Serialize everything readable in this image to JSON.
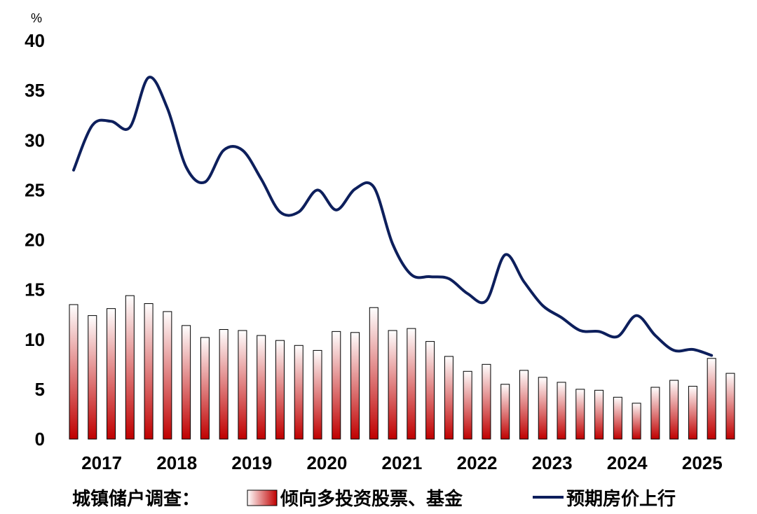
{
  "chart_data": {
    "type": "bar+line",
    "unit": "%",
    "ylim": [
      0,
      40
    ],
    "yticks": [
      0,
      5,
      10,
      15,
      20,
      25,
      30,
      35,
      40
    ],
    "year_labels": [
      "2017",
      "2018",
      "2019",
      "2020",
      "2021",
      "2022",
      "2023",
      "2024",
      "2025"
    ],
    "quarters": [
      "2017Q1",
      "2017Q2",
      "2017Q3",
      "2017Q4",
      "2018Q1",
      "2018Q2",
      "2018Q3",
      "2018Q4",
      "2019Q1",
      "2019Q2",
      "2019Q3",
      "2019Q4",
      "2020Q1",
      "2020Q2",
      "2020Q3",
      "2020Q4",
      "2021Q1",
      "2021Q2",
      "2021Q3",
      "2021Q4",
      "2022Q1",
      "2022Q2",
      "2022Q3",
      "2022Q4",
      "2023Q1",
      "2023Q2",
      "2023Q3",
      "2023Q4",
      "2024Q1",
      "2024Q2",
      "2024Q3",
      "2024Q4",
      "2025Q1",
      "2025Q2",
      "2025Q3",
      "2025Q4"
    ],
    "legend_prefix": "城镇储户调查：",
    "series": [
      {
        "name": "倾向多投资股票、基金",
        "type": "bar",
        "color_top": "#ffffff",
        "color_bottom": "#c00000",
        "values": [
          13.5,
          12.4,
          13.1,
          14.4,
          13.6,
          12.8,
          11.4,
          10.2,
          11.0,
          10.9,
          10.4,
          9.9,
          9.4,
          8.9,
          10.8,
          10.7,
          13.2,
          10.9,
          11.1,
          9.8,
          8.3,
          6.8,
          7.5,
          5.5,
          6.9,
          6.2,
          5.7,
          5.0,
          4.9,
          4.2,
          3.6,
          5.2,
          5.9,
          5.3,
          8.1,
          6.6
        ]
      },
      {
        "name": "预期房价上行",
        "type": "line",
        "color": "#0d1f5c",
        "values": [
          27.0,
          31.5,
          31.9,
          31.3,
          36.3,
          33.2,
          27.3,
          25.8,
          29.0,
          29.0,
          26.1,
          22.8,
          22.8,
          25.0,
          23.0,
          25.1,
          25.3,
          19.6,
          16.5,
          16.3,
          16.1,
          14.6,
          13.9,
          18.5,
          15.8,
          13.4,
          12.2,
          10.9,
          10.8,
          10.3,
          12.4,
          10.4,
          8.9,
          9.0,
          8.4
        ]
      }
    ]
  }
}
